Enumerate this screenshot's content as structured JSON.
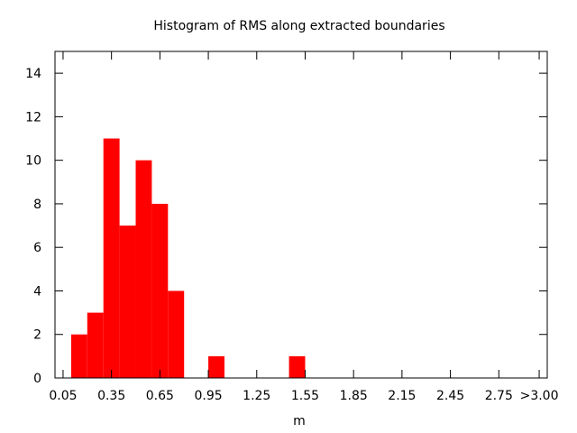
{
  "chart_data": {
    "type": "bar",
    "title": "Histogram of RMS along extracted boundaries",
    "xlabel": "m",
    "ylabel": "",
    "bin_width": 0.1,
    "bin_centers": [
      0.15,
      0.25,
      0.35,
      0.45,
      0.55,
      0.65,
      0.75,
      1.0,
      1.5
    ],
    "values": [
      2,
      3,
      11,
      7,
      10,
      8,
      4,
      1,
      1
    ],
    "xlim": [
      0.0,
      3.05
    ],
    "ylim": [
      0,
      15
    ],
    "x_ticks": [
      0.05,
      0.35,
      0.65,
      0.95,
      1.25,
      1.55,
      1.85,
      2.15,
      2.45,
      2.75,
      3.0
    ],
    "x_tick_labels": [
      "0.05",
      "0.35",
      "0.65",
      "0.95",
      "1.25",
      "1.55",
      "1.85",
      "2.15",
      "2.45",
      "2.75",
      ">3.00"
    ],
    "y_ticks": [
      0,
      2,
      4,
      6,
      8,
      10,
      12,
      14
    ],
    "y_tick_labels": [
      "0",
      "2",
      "4",
      "6",
      "8",
      "10",
      "12",
      "14"
    ],
    "bar_color": "#ff0000",
    "grid": false,
    "legend": "none"
  }
}
